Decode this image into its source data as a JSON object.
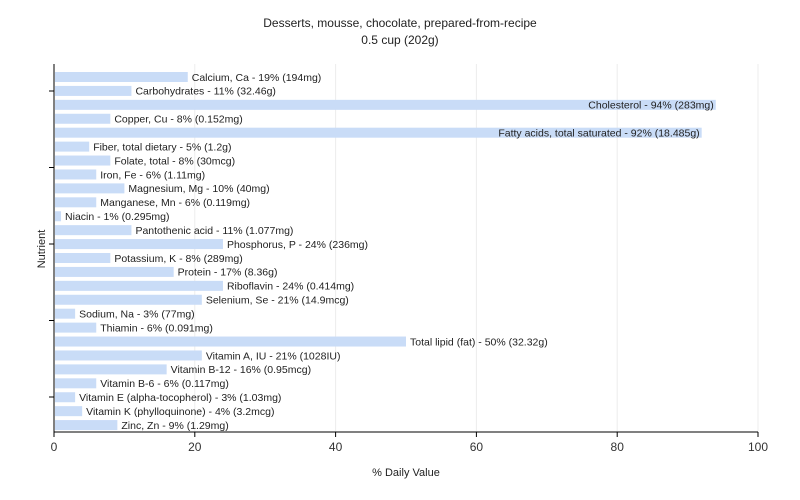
{
  "chart_data": {
    "type": "bar",
    "orientation": "horizontal",
    "title": "Desserts, mousse, chocolate, prepared-from-recipe",
    "subtitle": "0.5 cup (202g)",
    "xlabel": "% Daily Value",
    "ylabel": "Nutrient",
    "xlim": [
      0,
      100
    ],
    "xticks": [
      0,
      20,
      40,
      60,
      80,
      100
    ],
    "grid": true,
    "bar_color": "#c9dcf7",
    "categories": [
      "Calcium, Ca - 19% (194mg)",
      "Carbohydrates - 11% (32.46g)",
      "Cholesterol - 94% (283mg)",
      "Copper, Cu - 8% (0.152mg)",
      "Fatty acids, total saturated - 92% (18.485g)",
      "Fiber, total dietary - 5% (1.2g)",
      "Folate, total - 8% (30mcg)",
      "Iron, Fe - 6% (1.11mg)",
      "Magnesium, Mg - 10% (40mg)",
      "Manganese, Mn - 6% (0.119mg)",
      "Niacin - 1% (0.295mg)",
      "Pantothenic acid - 11% (1.077mg)",
      "Phosphorus, P - 24% (236mg)",
      "Potassium, K - 8% (289mg)",
      "Protein - 17% (8.36g)",
      "Riboflavin - 24% (0.414mg)",
      "Selenium, Se - 21% (14.9mcg)",
      "Sodium, Na - 3% (77mg)",
      "Thiamin - 6% (0.091mg)",
      "Total lipid (fat) - 50% (32.32g)",
      "Vitamin A, IU - 21% (1028IU)",
      "Vitamin B-12 - 16% (0.95mcg)",
      "Vitamin B-6 - 6% (0.117mg)",
      "Vitamin E (alpha-tocopherol) - 3% (1.03mg)",
      "Vitamin K (phylloquinone) - 4% (3.2mcg)",
      "Zinc, Zn - 9% (1.29mg)"
    ],
    "values": [
      19,
      11,
      94,
      8,
      92,
      5,
      8,
      6,
      10,
      6,
      1,
      11,
      24,
      8,
      17,
      24,
      21,
      3,
      6,
      50,
      21,
      16,
      6,
      3,
      4,
      9
    ]
  }
}
